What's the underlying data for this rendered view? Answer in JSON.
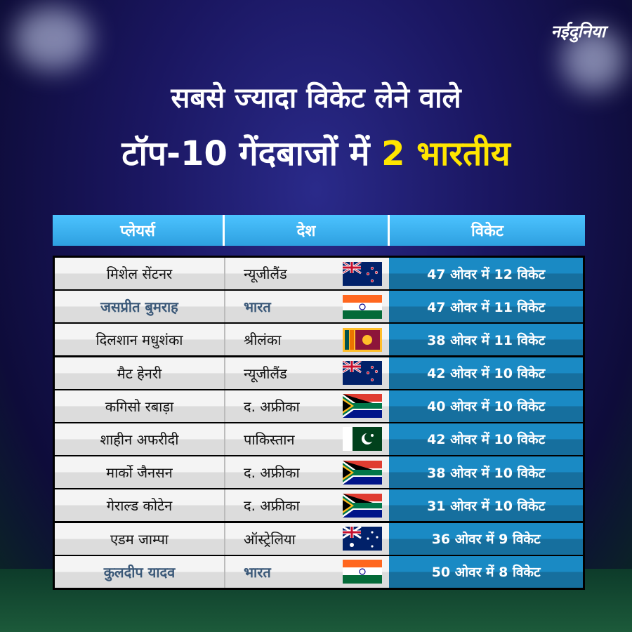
{
  "logo": "नईदुनिया",
  "title_line1": "सबसे ज्यादा विकेट लेने वाले",
  "title_line2_prefix": "टॉप-10 गेंदबाजों में",
  "title_line2_highlight": "2 भारतीय",
  "colors": {
    "highlight": "#ffe600",
    "header": "#3bb4f2",
    "wicket_cell": "#1a8ac4",
    "indian_text": "#3a5878"
  },
  "table": {
    "headers": [
      "प्लेयर्स",
      "देश",
      "विकेट"
    ],
    "rows": [
      {
        "player": "मिशेल सेंटनर",
        "country": "न्यूजीलैंड",
        "flag": "nz",
        "wickets": "47 ओवर में 12 विकेट",
        "indian": false
      },
      {
        "player": "जसप्रीत बुमराह",
        "country": "भारत",
        "flag": "in",
        "wickets": "47 ओवर में 11 विकेट",
        "indian": true
      },
      {
        "player": "दिलशान मधुशंका",
        "country": "श्रीलंका",
        "flag": "lk",
        "wickets": "38 ओवर में 11 विकेट",
        "indian": false
      },
      {
        "player": "मैट हेनरी",
        "country": "न्यूजीलैंड",
        "flag": "nz",
        "wickets": "42 ओवर में 10 विकेट",
        "indian": false
      },
      {
        "player": "कगिसो रबाड़ा",
        "country": "द. अफ्रीका",
        "flag": "za",
        "wickets": "40 ओवर में 10 विकेट",
        "indian": false
      },
      {
        "player": "शाहीन अफरीदी",
        "country": "पाकिस्तान",
        "flag": "pk",
        "wickets": "42 ओवर में 10 विकेट",
        "indian": false
      },
      {
        "player": "मार्को जैनसन",
        "country": "द. अफ्रीका",
        "flag": "za",
        "wickets": "38 ओवर में 10 विकेट",
        "indian": false
      },
      {
        "player": "गेराल्ड कोटेन",
        "country": "द. अफ्रीका",
        "flag": "za",
        "wickets": "31 ओवर में 10 विकेट",
        "indian": false
      },
      {
        "player": "एडम जाम्पा",
        "country": "ऑस्ट्रेलिया",
        "flag": "au",
        "wickets": "36 ओवर में 9 विकेट",
        "indian": false
      },
      {
        "player": "कुलदीप यादव",
        "country": "भारत",
        "flag": "in",
        "wickets": "50 ओवर में 8 विकेट",
        "indian": true
      }
    ]
  }
}
